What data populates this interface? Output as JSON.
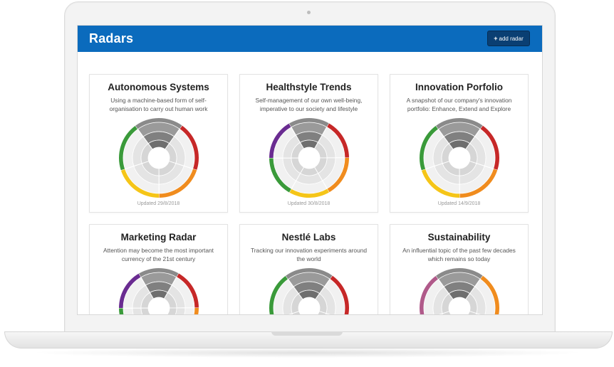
{
  "app": {
    "title": "Radars",
    "add_button_label": "add radar"
  },
  "radars": [
    {
      "title": "Autonomous Systems",
      "description": "Using a machine-based form of self-organisation to carry out human work",
      "updated": "Updated 29/8/2018"
    },
    {
      "title": "Healthstyle Trends",
      "description": "Self-management of our own well-being, imperative to our society and lifestyle",
      "updated": "Updated 30/8/2018"
    },
    {
      "title": "Innovation Porfolio",
      "description": "A snapshot of our company's innovation portfolio: Enhance, Extend and Explore",
      "updated": "Updated 14/9/2018"
    },
    {
      "title": "Marketing Radar",
      "description": "Attention may become the most important currency of the 21st century",
      "updated": ""
    },
    {
      "title": "Nestlé Labs",
      "description": "Tracking our innovation experiments around the world",
      "updated": ""
    },
    {
      "title": "Sustainability",
      "description": "An influential topic of the past few decades which remains so today",
      "updated": ""
    }
  ],
  "colors": {
    "brand_blue": "#0b6bbd",
    "button_dark": "#0a3f73",
    "segment_red": "#c62828",
    "segment_orange": "#f08c1e",
    "segment_yellow": "#f5c518",
    "segment_green": "#3a9a3a",
    "segment_purple": "#6a2c91",
    "segment_gray": "#8a8a8a",
    "segment_pink": "#b05a8a"
  },
  "icons": {
    "add": "plus-icon"
  }
}
